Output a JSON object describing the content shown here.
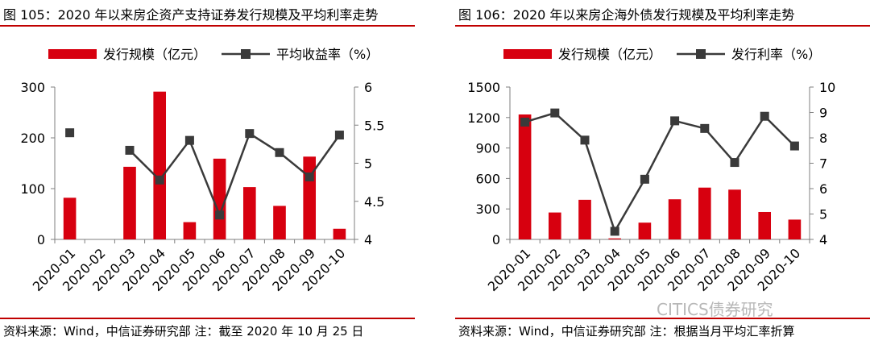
{
  "watermark": "CITICS债券研究",
  "chart_data": [
    {
      "type": "bar",
      "figure_title": "图 105：2020 年以来房企资产支持证券发行规模及平均利率走势",
      "source_note": "资料来源：Wind，中信证券研究部  注：截至 2020 年 10 月 25 日",
      "categories": [
        "2020-01",
        "2020-02",
        "2020-03",
        "2020-04",
        "2020-05",
        "2020-06",
        "2020-07",
        "2020-08",
        "2020-09",
        "2020-10"
      ],
      "series": [
        {
          "name": "发行规模（亿元）",
          "type": "bar",
          "axis": "left",
          "values": [
            82,
            0,
            143,
            291,
            34,
            159,
            103,
            66,
            163,
            21
          ]
        },
        {
          "name": "平均收益率（%）",
          "type": "line",
          "axis": "right",
          "values": [
            5.4,
            null,
            5.17,
            4.78,
            5.3,
            4.32,
            5.39,
            5.14,
            4.82,
            5.37
          ]
        }
      ],
      "y_left": {
        "min": 0,
        "max": 300,
        "ticks": [
          0,
          100,
          200,
          300
        ]
      },
      "y_right": {
        "min": 4,
        "max": 6,
        "ticks": [
          "4",
          "4.5",
          "5",
          "5.5",
          "6"
        ]
      },
      "legend": "top",
      "colors": {
        "bar": "#d7000f",
        "line": "#3a3a3a",
        "rule": "#c00000"
      }
    },
    {
      "type": "bar",
      "figure_title": "图 106：2020 年以来房企海外债发行规模及平均利率走势",
      "source_note": "资料来源：Wind，中信证券研究部  注：根据当月平均汇率折算",
      "categories": [
        "2020-01",
        "2020-02",
        "2020-03",
        "2020-04",
        "2020-05",
        "2020-06",
        "2020-07",
        "2020-08",
        "2020-09",
        "2020-10"
      ],
      "series": [
        {
          "name": "发行规模（亿元）",
          "type": "bar",
          "axis": "left",
          "values": [
            1230,
            265,
            390,
            10,
            165,
            395,
            510,
            490,
            270,
            195
          ]
        },
        {
          "name": "发行利率（%）",
          "type": "line",
          "axis": "right",
          "values": [
            8.62,
            8.98,
            7.91,
            4.32,
            6.37,
            8.67,
            8.37,
            7.03,
            8.85,
            7.68
          ]
        }
      ],
      "y_left": {
        "min": 0,
        "max": 1500,
        "ticks": [
          0,
          300,
          600,
          900,
          1200,
          1500
        ]
      },
      "y_right": {
        "min": 4,
        "max": 10,
        "ticks": [
          "4",
          "5",
          "6",
          "7",
          "8",
          "9",
          "10"
        ]
      },
      "legend": "top",
      "colors": {
        "bar": "#d7000f",
        "line": "#3a3a3a",
        "rule": "#c00000"
      }
    }
  ]
}
